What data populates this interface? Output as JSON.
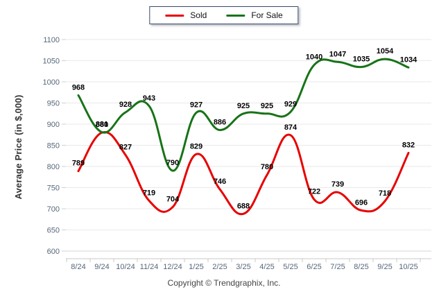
{
  "footer": {
    "copyright": "Copyright © Trendgraphix, Inc."
  },
  "chart_data": {
    "type": "line",
    "title": "",
    "xlabel": "",
    "ylabel": "Average Price (in $,000)",
    "ylim": [
      600,
      1100
    ],
    "y_tick_step": 50,
    "y_ticks": [
      600,
      650,
      700,
      750,
      800,
      850,
      900,
      950,
      1000,
      1050,
      1100
    ],
    "grid": true,
    "legend_position": "top-center",
    "data_labels": true,
    "categories": [
      "8/24",
      "9/24",
      "10/24",
      "11/24",
      "12/24",
      "1/25",
      "2/25",
      "3/25",
      "4/25",
      "5/25",
      "6/25",
      "7/25",
      "8/25",
      "9/25",
      "10/25"
    ],
    "series": [
      {
        "name": "Sold",
        "color": "#e80000",
        "values": [
          789,
          880,
          827,
          719,
          704,
          829,
          746,
          688,
          780,
          874,
          722,
          739,
          696,
          718,
          832
        ]
      },
      {
        "name": "For Sale",
        "color": "#177317",
        "values": [
          968,
          881,
          928,
          943,
          790,
          927,
          886,
          925,
          925,
          929,
          1040,
          1047,
          1035,
          1054,
          1034
        ]
      }
    ]
  }
}
